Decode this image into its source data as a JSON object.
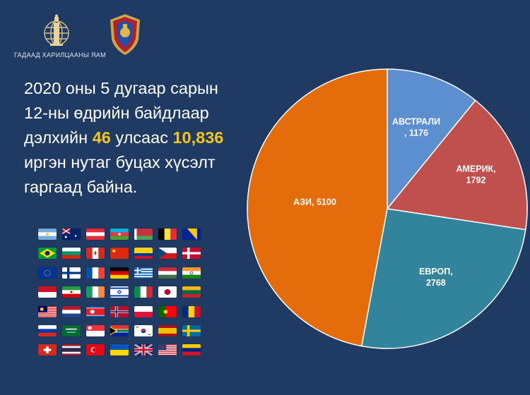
{
  "header": {
    "ministry_caption": "ГАДААД ХАРИЛЦААНЫ ЯАМ"
  },
  "headline": {
    "line1": "2020 оны 5 дугаар сарын",
    "line2": "12-ны өдрийн байдлаар",
    "line3_pre": "дэлхийн ",
    "countries": "46",
    "line3_mid": " улсаас ",
    "citizens": "10,836",
    "line4": "иргэн нутаг буцах хүсэлт",
    "line5": "гаргаад байна.",
    "highlight_color": "#f5c51c"
  },
  "flags": [
    "argentina",
    "australia",
    "austria",
    "azerbaijan",
    "belarus",
    "belgium",
    "bosnia",
    "brazil",
    "bulgaria",
    "canada",
    "china",
    "colombia",
    "czechia",
    "denmark",
    "eu",
    "finland",
    "france",
    "germany",
    "greece",
    "hungary",
    "india",
    "indonesia",
    "iran",
    "ireland",
    "israel",
    "italy",
    "japan",
    "lithuania",
    "malaysia",
    "netherlands",
    "north-korea",
    "norway",
    "poland",
    "portugal",
    "romania",
    "russia",
    "saudi-arabia",
    "singapore",
    "south-africa",
    "south-korea",
    "spain",
    "sweden",
    "switzerland",
    "thailand",
    "turkey",
    "ukraine",
    "united-kingdom",
    "usa",
    "venezuela"
  ],
  "chart_data": {
    "type": "pie",
    "title": "",
    "slices": [
      {
        "label": "АВСТРАЛИ",
        "value": 1176,
        "color": "#5b8fcf",
        "text_lines": [
          "АВСТРАЛИ",
          ", 1176"
        ]
      },
      {
        "label": "АМЕРИК",
        "value": 1792,
        "color": "#c0504d",
        "text_lines": [
          "АМЕРИК,",
          "1792"
        ]
      },
      {
        "label": "ЕВРОП",
        "value": 2768,
        "color": "#31849b",
        "text_lines": [
          "ЕВРОП,",
          "2768"
        ]
      },
      {
        "label": "АЗИ",
        "value": 5100,
        "color": "#e46c0a",
        "text_lines": [
          "АЗИ, 5100"
        ]
      }
    ],
    "start": "12 o'clock",
    "direction": "clockwise",
    "legend": "none"
  }
}
